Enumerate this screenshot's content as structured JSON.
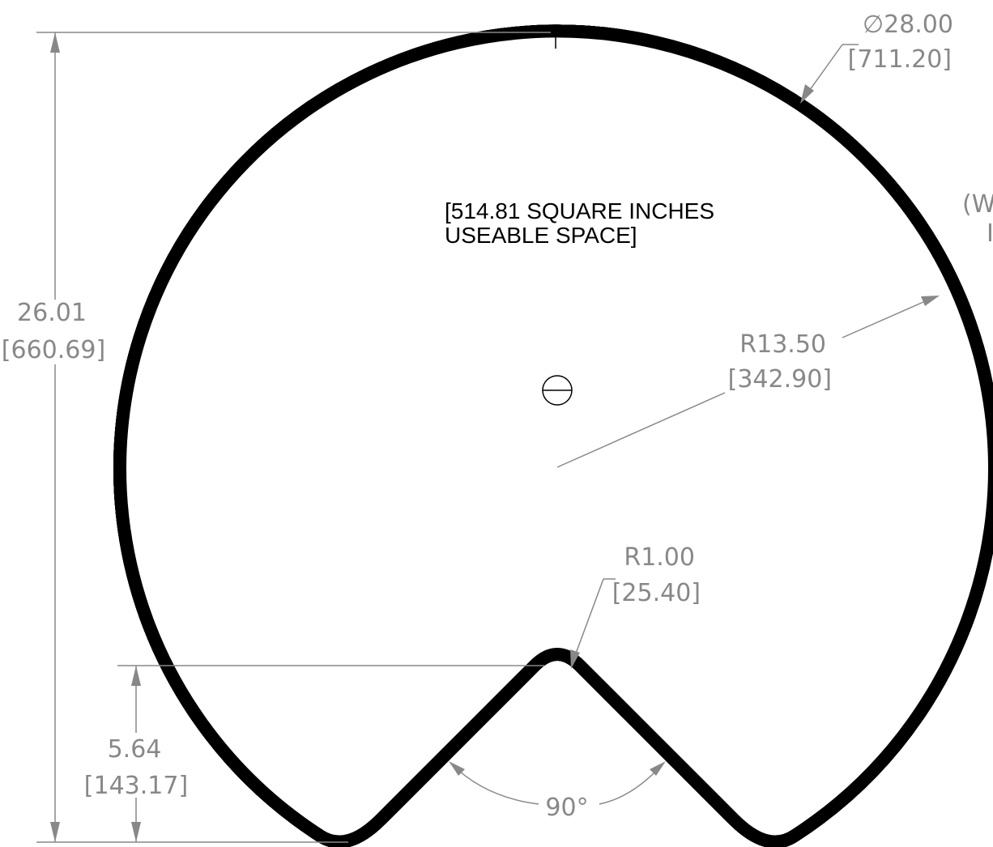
{
  "drawing": {
    "note": [
      "[514.81 SQUARE INCHES",
      "USEABLE SPACE]"
    ],
    "diameter": {
      "value": "∅28.00",
      "metric": "[711.20]"
    },
    "height": {
      "value": "26.01",
      "metric": "[660.69]"
    },
    "radius": {
      "value": "R13.50",
      "metric": "[342.90]"
    },
    "notch_radius": {
      "value": "R1.00",
      "metric": "[25.40]"
    },
    "notch_depth": {
      "value": "5.64",
      "metric": "[143.17]"
    },
    "angle": "90°",
    "cut_text": [
      "(W",
      "I"
    ]
  }
}
